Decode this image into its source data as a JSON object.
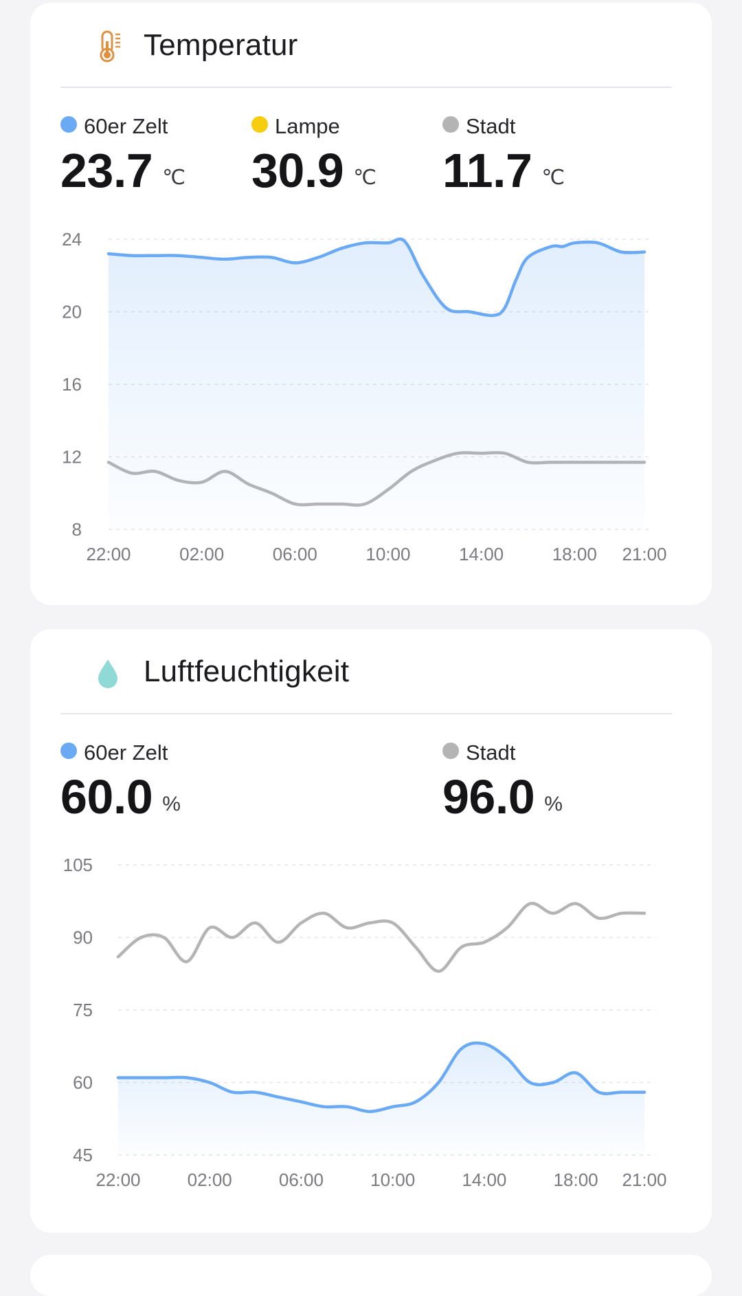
{
  "cards": {
    "temperature": {
      "title": "Temperatur",
      "icon": "thermometer-icon",
      "legend": [
        {
          "name": "60er Zelt",
          "value": "23.7",
          "unit": "℃",
          "color": "#6aaaf5"
        },
        {
          "name": "Lampe",
          "value": "30.9",
          "unit": "℃",
          "color": "#f7cd0f"
        },
        {
          "name": "Stadt",
          "value": "11.7",
          "unit": "℃",
          "color": "#b4b4b4"
        }
      ]
    },
    "humidity": {
      "title": "Luftfeuchtigkeit",
      "icon": "water-drop-icon",
      "legend": [
        {
          "name": "60er Zelt",
          "value": "60.0",
          "unit": "%",
          "color": "#6aaaf5"
        },
        {
          "name": "Stadt",
          "value": "96.0",
          "unit": "%",
          "color": "#b4b4b4"
        }
      ]
    }
  },
  "chart_data": [
    {
      "type": "line",
      "title": "Temperatur",
      "ylim": [
        8,
        24
      ],
      "yticks": [
        "24",
        "20",
        "16",
        "12",
        "8"
      ],
      "xlim": [
        0,
        23
      ],
      "xticks": [
        {
          "label": "22:00",
          "x": 0
        },
        {
          "label": "02:00",
          "x": 4
        },
        {
          "label": "06:00",
          "x": 8
        },
        {
          "label": "10:00",
          "x": 12
        },
        {
          "label": "14:00",
          "x": 16
        },
        {
          "label": "18:00",
          "x": 20
        },
        {
          "label": "21:00",
          "x": 23
        }
      ],
      "grid": true,
      "series": [
        {
          "name": "60er Zelt",
          "color": "#6aaaf5",
          "fill": true,
          "x": [
            0,
            1,
            2,
            3,
            4,
            5,
            6,
            7,
            8,
            9,
            10,
            11,
            12,
            12.7,
            13.5,
            14.5,
            15.5,
            16.5,
            17,
            17.5,
            18,
            19,
            19.5,
            20,
            21,
            22,
            23
          ],
          "y": [
            23.2,
            23.1,
            23.1,
            23.1,
            23.0,
            22.9,
            23.0,
            23.0,
            22.7,
            23.0,
            23.5,
            23.8,
            23.8,
            23.9,
            22.0,
            20.2,
            20.0,
            19.8,
            20.2,
            21.8,
            23.0,
            23.6,
            23.6,
            23.8,
            23.8,
            23.3,
            23.3
          ]
        },
        {
          "name": "Stadt",
          "color": "#b4b4b4",
          "fill": false,
          "x": [
            0,
            1,
            2,
            3,
            4,
            5,
            6,
            7,
            8,
            9,
            10,
            11,
            12,
            13,
            14,
            15,
            16,
            17,
            18,
            19,
            20,
            21,
            22,
            23
          ],
          "y": [
            11.7,
            11.1,
            11.2,
            10.7,
            10.6,
            11.2,
            10.5,
            10.0,
            9.4,
            9.4,
            9.4,
            9.4,
            10.2,
            11.2,
            11.8,
            12.2,
            12.2,
            12.2,
            11.7,
            11.7,
            11.7,
            11.7,
            11.7,
            11.7
          ]
        }
      ]
    },
    {
      "type": "line",
      "title": "Luftfeuchtigkeit",
      "ylim": [
        45,
        105
      ],
      "yticks": [
        "105",
        "90",
        "75",
        "60",
        "45"
      ],
      "xlim": [
        0,
        23
      ],
      "xticks": [
        {
          "label": "22:00",
          "x": 0
        },
        {
          "label": "02:00",
          "x": 4
        },
        {
          "label": "06:00",
          "x": 8
        },
        {
          "label": "10:00",
          "x": 12
        },
        {
          "label": "14:00",
          "x": 16
        },
        {
          "label": "18:00",
          "x": 20
        },
        {
          "label": "21:00",
          "x": 23
        }
      ],
      "grid": true,
      "series": [
        {
          "name": "60er Zelt",
          "color": "#6aaaf5",
          "fill": true,
          "x": [
            0,
            1,
            2,
            3,
            4,
            5,
            6,
            7,
            8,
            9,
            10,
            11,
            12,
            13,
            14,
            15,
            16,
            17,
            18,
            19,
            20,
            21,
            22,
            23
          ],
          "y": [
            61,
            61,
            61,
            61,
            60,
            58,
            58,
            57,
            56,
            55,
            55,
            54,
            55,
            56,
            60,
            67,
            68,
            65,
            60,
            60,
            62,
            58,
            58,
            58
          ]
        },
        {
          "name": "Stadt",
          "color": "#b4b4b4",
          "fill": false,
          "x": [
            0,
            1,
            2,
            3,
            4,
            5,
            6,
            7,
            8,
            9,
            10,
            11,
            12,
            13,
            14,
            15,
            16,
            17,
            18,
            19,
            20,
            21,
            22,
            23
          ],
          "y": [
            86,
            90,
            90,
            85,
            92,
            90,
            93,
            89,
            93,
            95,
            92,
            93,
            93,
            88,
            83,
            88,
            89,
            92,
            97,
            95,
            97,
            94,
            95,
            95
          ]
        }
      ]
    }
  ]
}
